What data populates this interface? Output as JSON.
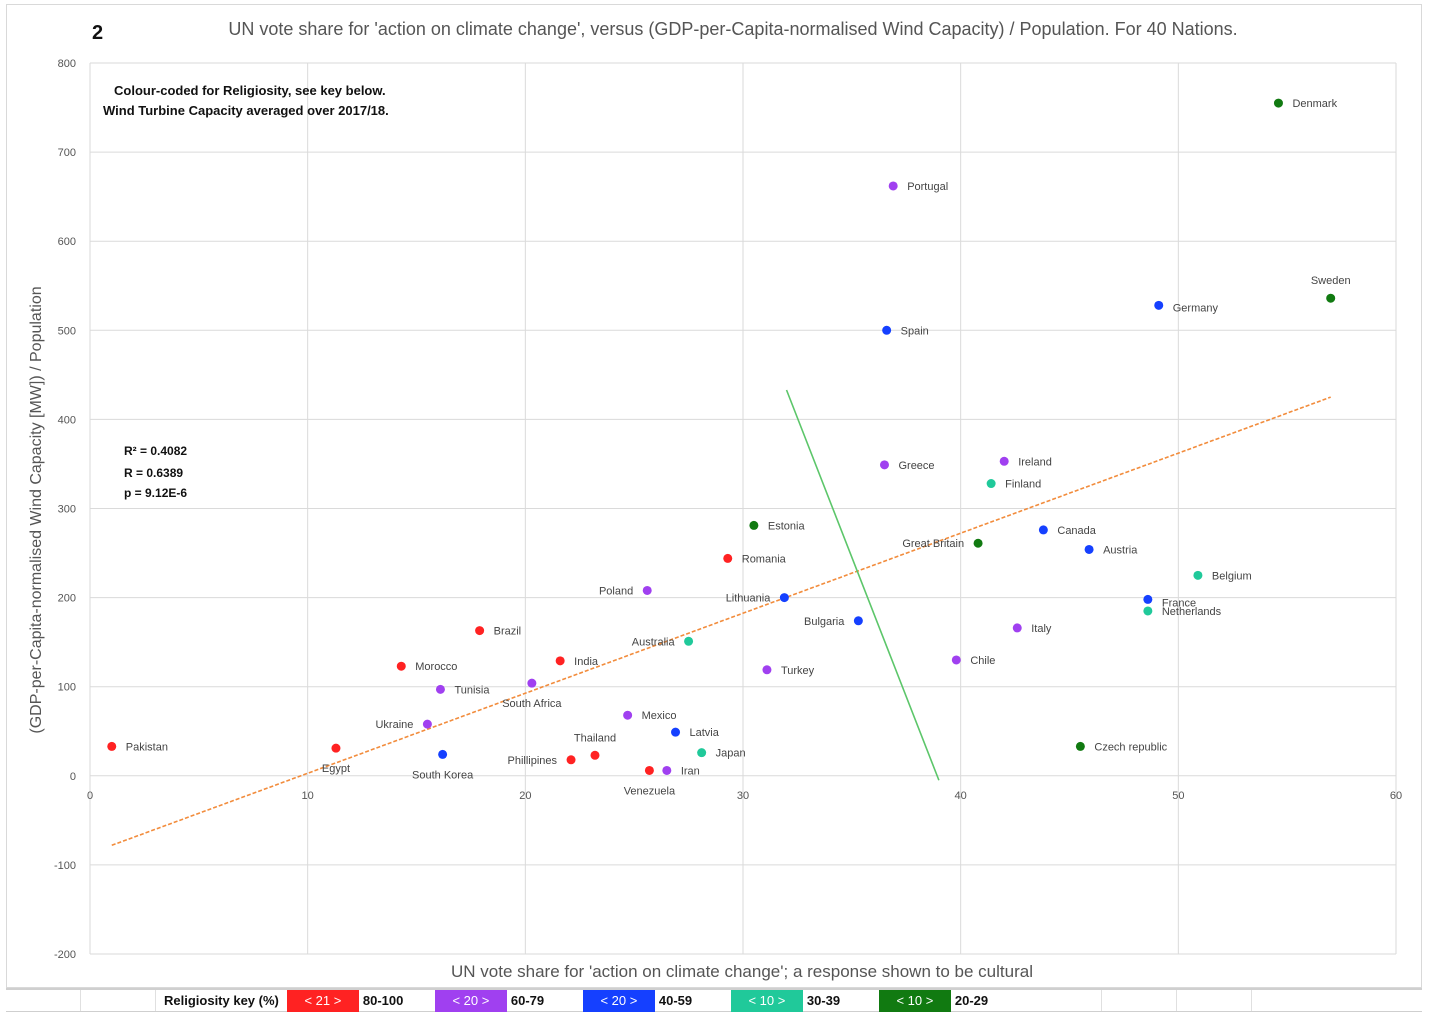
{
  "figure_number": "2",
  "chart_data": {
    "type": "scatter",
    "title": "UN vote share for 'action on climate change', versus (GDP-per-Capita-normalised Wind Capacity) / Population. For 40 Nations.",
    "xlabel": "UN vote share for 'action on climate change'; a response shown to be cultural",
    "ylabel": "(GDP-per-Capita-normalised Wind Capacity [MW]) / Population",
    "xlim": [
      0,
      60
    ],
    "ylim": [
      -200,
      800
    ],
    "x_ticks": [
      0,
      10,
      20,
      30,
      40,
      50,
      60
    ],
    "y_ticks": [
      -200,
      -100,
      0,
      100,
      200,
      300,
      400,
      500,
      600,
      700,
      800
    ],
    "grid": true,
    "notes": [
      "Colour-coded for Religiosity, see key below.",
      "Wind Turbine Capacity averaged over 2017/18."
    ],
    "stats": [
      "R² = 0.4082",
      "R = 0.6389",
      "p = 9.12E-6"
    ],
    "trendline": {
      "color": "#f28c3c",
      "points": [
        [
          1,
          -78
        ],
        [
          57,
          425
        ]
      ]
    },
    "divider_line": {
      "color": "#5cc66a",
      "points": [
        [
          32,
          433
        ],
        [
          39,
          -5
        ]
      ]
    },
    "categories": [
      {
        "key": "80-100",
        "label": "< 21 >",
        "color": "#ff2222"
      },
      {
        "key": "60-79",
        "label": "< 20 >",
        "color": "#a040f0"
      },
      {
        "key": "40-59",
        "label": "< 20 >",
        "color": "#1540ff"
      },
      {
        "key": "30-39",
        "label": "< 10 >",
        "color": "#20c99a"
      },
      {
        "key": "20-29",
        "label": "< 10 >",
        "color": "#117a11"
      }
    ],
    "points": [
      {
        "name": "Pakistan",
        "x": 1.0,
        "y": 33,
        "cat": "80-100",
        "lx": 14,
        "ly": 4,
        "anchor": "start"
      },
      {
        "name": "Egypt",
        "x": 11.3,
        "y": 31,
        "cat": "80-100",
        "lx": 0,
        "ly": 24,
        "anchor": "middle"
      },
      {
        "name": "Morocco",
        "x": 14.3,
        "y": 123,
        "cat": "80-100",
        "lx": 14,
        "ly": 4,
        "anchor": "start"
      },
      {
        "name": "Brazil",
        "x": 17.9,
        "y": 163,
        "cat": "80-100",
        "lx": 14,
        "ly": 4,
        "anchor": "start"
      },
      {
        "name": "India",
        "x": 21.6,
        "y": 129,
        "cat": "80-100",
        "lx": 14,
        "ly": 4,
        "anchor": "start"
      },
      {
        "name": "Phillipines",
        "x": 22.1,
        "y": 18,
        "cat": "80-100",
        "lx": -14,
        "ly": 4,
        "anchor": "end"
      },
      {
        "name": "Thailand",
        "x": 23.2,
        "y": 23,
        "cat": "80-100",
        "lx": 0,
        "ly": -14,
        "anchor": "middle"
      },
      {
        "name": "Venezuela",
        "x": 25.7,
        "y": 6,
        "cat": "80-100",
        "lx": 0,
        "ly": 24,
        "anchor": "middle"
      },
      {
        "name": "Romania",
        "x": 29.3,
        "y": 244,
        "cat": "80-100",
        "lx": 14,
        "ly": 4,
        "anchor": "start"
      },
      {
        "name": "Ukraine",
        "x": 15.5,
        "y": 58,
        "cat": "60-79",
        "lx": -14,
        "ly": 4,
        "anchor": "end"
      },
      {
        "name": "Tunisia",
        "x": 16.1,
        "y": 97,
        "cat": "60-79",
        "lx": 14,
        "ly": 4,
        "anchor": "start"
      },
      {
        "name": "South Africa",
        "x": 20.3,
        "y": 104,
        "cat": "60-79",
        "lx": 0,
        "ly": 24,
        "anchor": "middle"
      },
      {
        "name": "Mexico",
        "x": 24.7,
        "y": 68,
        "cat": "60-79",
        "lx": 14,
        "ly": 4,
        "anchor": "start"
      },
      {
        "name": "Poland",
        "x": 25.6,
        "y": 208,
        "cat": "60-79",
        "lx": -14,
        "ly": 4,
        "anchor": "end"
      },
      {
        "name": "Iran",
        "x": 26.5,
        "y": 6,
        "cat": "60-79",
        "lx": 14,
        "ly": 4,
        "anchor": "start"
      },
      {
        "name": "Turkey",
        "x": 31.1,
        "y": 119,
        "cat": "60-79",
        "lx": 14,
        "ly": 4,
        "anchor": "start"
      },
      {
        "name": "Greece",
        "x": 36.5,
        "y": 349,
        "cat": "60-79",
        "lx": 14,
        "ly": 4,
        "anchor": "start"
      },
      {
        "name": "Portugal",
        "x": 36.9,
        "y": 662,
        "cat": "60-79",
        "lx": 14,
        "ly": 4,
        "anchor": "start"
      },
      {
        "name": "Chile",
        "x": 39.8,
        "y": 130,
        "cat": "60-79",
        "lx": 14,
        "ly": 4,
        "anchor": "start"
      },
      {
        "name": "Ireland",
        "x": 42.0,
        "y": 353,
        "cat": "60-79",
        "lx": 14,
        "ly": 4,
        "anchor": "start"
      },
      {
        "name": "Italy",
        "x": 42.6,
        "y": 166,
        "cat": "60-79",
        "lx": 14,
        "ly": 4,
        "anchor": "start"
      },
      {
        "name": "South Korea",
        "x": 16.2,
        "y": 24,
        "cat": "40-59",
        "lx": 0,
        "ly": 24,
        "anchor": "middle"
      },
      {
        "name": "Latvia",
        "x": 26.9,
        "y": 49,
        "cat": "40-59",
        "lx": 14,
        "ly": 4,
        "anchor": "start"
      },
      {
        "name": "Lithuania",
        "x": 31.9,
        "y": 200,
        "cat": "40-59",
        "lx": -14,
        "ly": 4,
        "anchor": "end"
      },
      {
        "name": "Bulgaria",
        "x": 35.3,
        "y": 174,
        "cat": "40-59",
        "lx": -14,
        "ly": 4,
        "anchor": "end"
      },
      {
        "name": "Spain",
        "x": 36.6,
        "y": 500,
        "cat": "40-59",
        "lx": 14,
        "ly": 4,
        "anchor": "start"
      },
      {
        "name": "Canada",
        "x": 43.8,
        "y": 276,
        "cat": "40-59",
        "lx": 14,
        "ly": 4,
        "anchor": "start"
      },
      {
        "name": "Austria",
        "x": 45.9,
        "y": 254,
        "cat": "40-59",
        "lx": 14,
        "ly": 4,
        "anchor": "start"
      },
      {
        "name": "France",
        "x": 48.6,
        "y": 198,
        "cat": "40-59",
        "lx": 14,
        "ly": 7,
        "anchor": "start"
      },
      {
        "name": "Germany",
        "x": 49.1,
        "y": 528,
        "cat": "40-59",
        "lx": 14,
        "ly": 6,
        "anchor": "start"
      },
      {
        "name": "Australia",
        "x": 27.5,
        "y": 151,
        "cat": "30-39",
        "lx": -14,
        "ly": 4,
        "anchor": "end"
      },
      {
        "name": "Japan",
        "x": 28.1,
        "y": 26,
        "cat": "30-39",
        "lx": 14,
        "ly": 4,
        "anchor": "start"
      },
      {
        "name": "Finland",
        "x": 41.4,
        "y": 328,
        "cat": "30-39",
        "lx": 14,
        "ly": 4,
        "anchor": "start"
      },
      {
        "name": "Netherlands",
        "x": 48.6,
        "y": 185,
        "cat": "30-39",
        "lx": 14,
        "ly": 4,
        "anchor": "start"
      },
      {
        "name": "Belgium",
        "x": 50.9,
        "y": 225,
        "cat": "30-39",
        "lx": 14,
        "ly": 4,
        "anchor": "start"
      },
      {
        "name": "Estonia",
        "x": 30.5,
        "y": 281,
        "cat": "20-29",
        "lx": 14,
        "ly": 4,
        "anchor": "start"
      },
      {
        "name": "Great Britain",
        "x": 40.8,
        "y": 261,
        "cat": "20-29",
        "lx": -14,
        "ly": 4,
        "anchor": "end"
      },
      {
        "name": "Czech republic",
        "x": 45.5,
        "y": 33,
        "cat": "20-29",
        "lx": 14,
        "ly": 4,
        "anchor": "start"
      },
      {
        "name": "Denmark",
        "x": 54.6,
        "y": 755,
        "cat": "20-29",
        "lx": 14,
        "ly": 4,
        "anchor": "start"
      },
      {
        "name": "Sweden",
        "x": 57.0,
        "y": 536,
        "cat": "20-29",
        "lx": 0,
        "ly": -14,
        "anchor": "middle"
      }
    ]
  },
  "key": {
    "title": "Religiosity key (%)",
    "items": [
      {
        "label": "< 21 >",
        "range": "80-100",
        "color": "#ff2222"
      },
      {
        "label": "< 20 >",
        "range": "60-79",
        "color": "#a040f0"
      },
      {
        "label": "< 20 >",
        "range": "40-59",
        "color": "#1540ff"
      },
      {
        "label": "< 10 >",
        "range": "30-39",
        "color": "#20c99a"
      },
      {
        "label": "< 10 >",
        "range": "20-29",
        "color": "#117a11"
      }
    ]
  }
}
